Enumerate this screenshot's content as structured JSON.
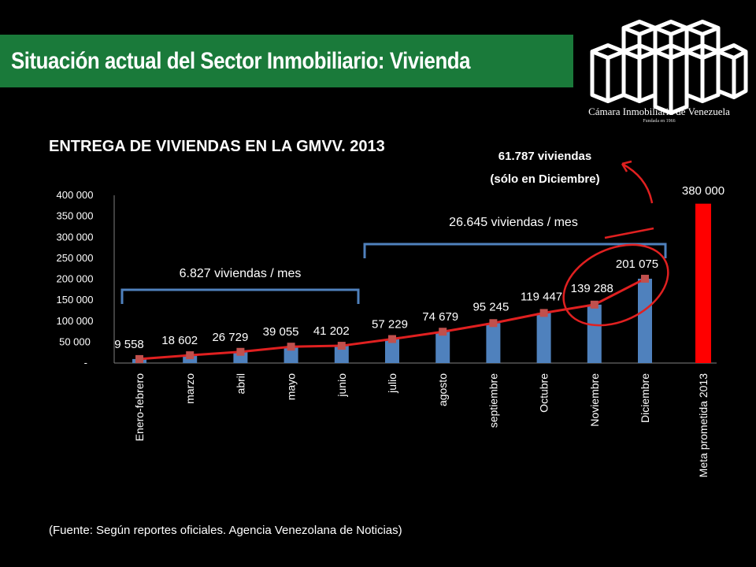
{
  "slide": {
    "title": "Situación actual del Sector Inmobiliario: Vivienda",
    "logo_name": "Cámara Inmobiliaria de Venezuela",
    "logo_sub": "Fundada en 1966",
    "source": "(Fuente: Según reportes oficiales. Agencia Venezolana de Noticias)",
    "colors": {
      "banner": "#1a7a3a",
      "background": "#000000"
    }
  },
  "chart_data": {
    "type": "bar",
    "title": "ENTREGA DE VIVIENDAS EN LA GMVV. 2013",
    "categories": [
      "Enero-febrero",
      "marzo",
      "abril",
      "mayo",
      "junio",
      "julio",
      "agosto",
      "septiembre",
      "Octubre",
      "Noviembre",
      "Diciembre",
      "Meta prometida 2013"
    ],
    "series": [
      {
        "values": [
          9558,
          18602,
          26729,
          39055,
          41202,
          57229,
          74679,
          95245,
          119447,
          139288,
          201075,
          380000
        ],
        "data_labels": [
          "9 558",
          "18 602",
          "26 729",
          "39 055",
          "41 202",
          "57 229",
          "74 679",
          "95 245",
          "119 447",
          "139 288",
          "201 075",
          "380 000"
        ],
        "color": "#4f81bd",
        "highlight_color": "#ff0000"
      }
    ],
    "line_series": {
      "values": [
        9558,
        18602,
        26729,
        39055,
        41202,
        57229,
        74679,
        95245,
        119447,
        139288,
        201075
      ],
      "color": "#e02020",
      "marker_color": "#c0504d"
    },
    "ylim": [
      0,
      400000
    ],
    "y_ticks": [
      0,
      50000,
      100000,
      150000,
      200000,
      250000,
      300000,
      350000,
      400000
    ],
    "y_tick_labels": [
      "-",
      "50 000",
      "100 000",
      "150 000",
      "200 000",
      "250 000",
      "300 000",
      "350 000",
      "400 000"
    ],
    "annotations": {
      "bracket1": "6.827 viviendas / mes",
      "bracket2": "26.645 viviendas / mes",
      "december_line1": "61.787 viviendas",
      "december_line2": "(sólo en Diciembre)"
    }
  }
}
